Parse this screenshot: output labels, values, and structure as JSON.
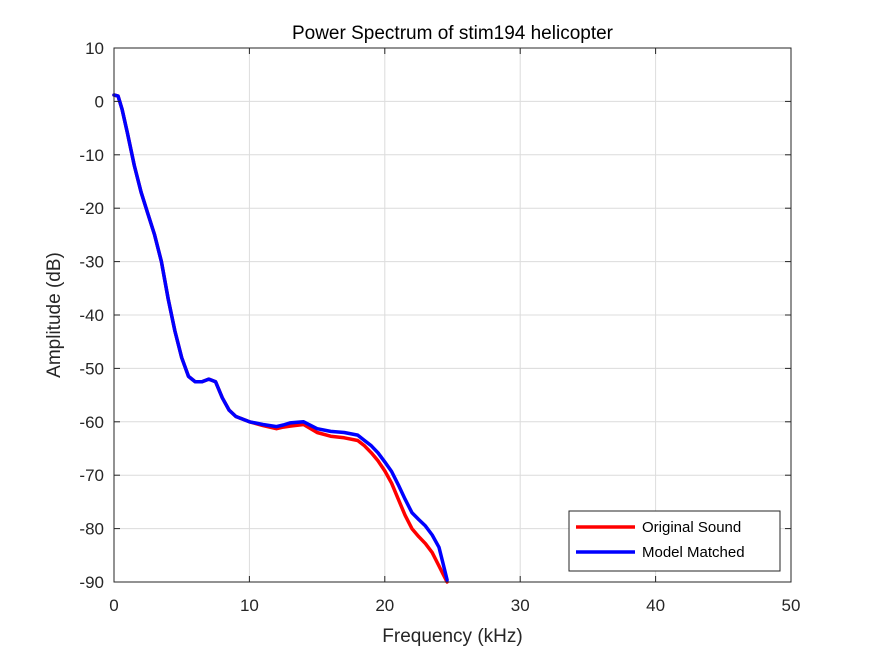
{
  "chart_data": {
    "type": "line",
    "title": "Power Spectrum of stim194 helicopter",
    "xlabel": "Frequency (kHz)",
    "ylabel": "Amplitude (dB)",
    "xlim": [
      0,
      50
    ],
    "ylim": [
      -90,
      10
    ],
    "xticks": [
      0,
      10,
      20,
      30,
      40,
      50
    ],
    "yticks": [
      10,
      0,
      -10,
      -20,
      -30,
      -40,
      -50,
      -60,
      -70,
      -80,
      -90
    ],
    "grid": true,
    "legend_position": "bottom-right",
    "series": [
      {
        "name": "Original Sound",
        "color": "#ff0000",
        "x": [
          0,
          0.3,
          0.6,
          1,
          1.5,
          2,
          2.5,
          3,
          3.5,
          4,
          4.5,
          5,
          5.5,
          6,
          6.5,
          7,
          7.5,
          8,
          8.5,
          9,
          10,
          11,
          12,
          12.5,
          13,
          14,
          15,
          16,
          17,
          18,
          18.5,
          19,
          19.5,
          20,
          20.5,
          21,
          21.5,
          22,
          22.5,
          23,
          23.5,
          24,
          24.3,
          24.6
        ],
        "y": [
          1.2,
          1,
          -1.5,
          -6,
          -12,
          -17,
          -21,
          -25,
          -30,
          -37,
          -43,
          -48,
          -51.5,
          -52.5,
          -52.5,
          -52,
          -52.5,
          -55.5,
          -57.8,
          -59,
          -60,
          -60.7,
          -61.3,
          -61,
          -60.8,
          -60.5,
          -62,
          -62.7,
          -63,
          -63.5,
          -64.5,
          -65.8,
          -67.3,
          -69.2,
          -71.5,
          -74.5,
          -77.5,
          -80,
          -81.5,
          -82.8,
          -84.5,
          -87,
          -88.5,
          -90
        ]
      },
      {
        "name": "Model Matched",
        "color": "#0000ff",
        "x": [
          0,
          0.3,
          0.6,
          1,
          1.5,
          2,
          2.5,
          3,
          3.5,
          4,
          4.5,
          5,
          5.5,
          6,
          6.5,
          7,
          7.5,
          8,
          8.5,
          9,
          10,
          11,
          12,
          12.5,
          13,
          14,
          15,
          16,
          17,
          18,
          18.5,
          19,
          19.5,
          20,
          20.5,
          21,
          21.5,
          22,
          22.5,
          23,
          23.5,
          24,
          24.3,
          24.6
        ],
        "y": [
          1.2,
          1,
          -1.5,
          -6,
          -12,
          -17,
          -21,
          -25,
          -30,
          -37,
          -43,
          -48,
          -51.5,
          -52.5,
          -52.5,
          -52,
          -52.5,
          -55.5,
          -57.8,
          -59,
          -60,
          -60.5,
          -60.9,
          -60.6,
          -60.2,
          -60,
          -61.3,
          -61.8,
          -62,
          -62.5,
          -63.5,
          -64.5,
          -65.8,
          -67.5,
          -69.3,
          -71.8,
          -74.5,
          -77,
          -78.3,
          -79.5,
          -81.2,
          -83.5,
          -86.5,
          -89.6
        ]
      }
    ]
  }
}
